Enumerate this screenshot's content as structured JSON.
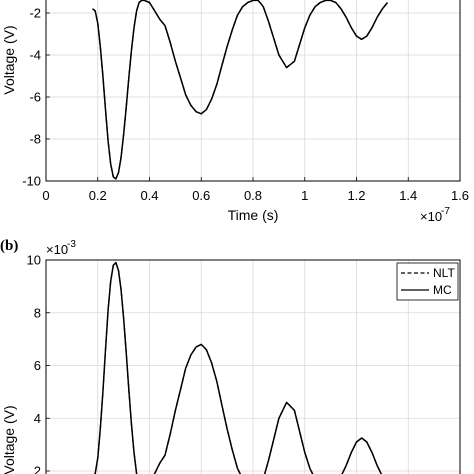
{
  "chart_data": [
    {
      "type": "line",
      "panel_label": "",
      "xlabel": "Time (s)",
      "ylabel": "Voltage (V)",
      "x_exponent_base": "×10",
      "x_exponent_power": "-7",
      "y_exponent_base": "",
      "y_exponent_power": "",
      "xlim": [
        0,
        1.6
      ],
      "ylim": [
        -10,
        -2
      ],
      "x_ticks": [
        "0",
        "0.2",
        "0.4",
        "0.6",
        "0.8",
        "1",
        "1.2",
        "1.4",
        "1.6"
      ],
      "y_ticks": [
        "-10",
        "-8",
        "-6",
        "-4",
        "-2"
      ],
      "grid": true,
      "legend": null,
      "series": [
        {
          "style": "solid",
          "x": [
            0.18,
            0.19,
            0.2,
            0.21,
            0.22,
            0.23,
            0.24,
            0.25,
            0.26,
            0.27,
            0.28,
            0.29,
            0.3,
            0.31,
            0.32,
            0.33,
            0.34,
            0.35,
            0.36,
            0.37,
            0.38,
            0.4,
            0.42,
            0.44,
            0.46,
            0.48,
            0.5,
            0.52,
            0.54,
            0.56,
            0.58,
            0.6,
            0.62,
            0.64,
            0.66,
            0.68,
            0.7,
            0.72,
            0.74,
            0.76,
            0.78,
            0.8,
            0.82,
            0.84,
            0.86,
            0.88,
            0.9,
            0.93,
            0.96,
            0.98,
            1.0,
            1.02,
            1.04,
            1.06,
            1.08,
            1.1,
            1.12,
            1.14,
            1.16,
            1.18,
            1.2,
            1.22,
            1.24,
            1.26,
            1.28,
            1.3,
            1.32
          ],
          "y": [
            -1.8,
            -1.9,
            -2.5,
            -3.6,
            -5.0,
            -6.6,
            -8.1,
            -9.2,
            -9.8,
            -9.9,
            -9.6,
            -8.9,
            -7.8,
            -6.5,
            -5.1,
            -3.8,
            -2.7,
            -1.9,
            -1.5,
            -1.4,
            -1.4,
            -1.5,
            -1.9,
            -2.3,
            -2.6,
            -3.4,
            -4.3,
            -5.1,
            -5.9,
            -6.4,
            -6.7,
            -6.8,
            -6.6,
            -6.1,
            -5.4,
            -4.5,
            -3.6,
            -2.8,
            -2.1,
            -1.7,
            -1.5,
            -1.4,
            -1.4,
            -1.7,
            -2.4,
            -3.2,
            -4.0,
            -4.6,
            -4.3,
            -3.5,
            -2.7,
            -2.1,
            -1.7,
            -1.5,
            -1.4,
            -1.4,
            -1.5,
            -1.8,
            -2.2,
            -2.7,
            -3.1,
            -3.25,
            -3.1,
            -2.7,
            -2.2,
            -1.8,
            -1.5
          ]
        },
        {
          "style": "dashed",
          "x": [
            0.18,
            0.19,
            0.2,
            0.21,
            0.22,
            0.23,
            0.24,
            0.25,
            0.26,
            0.27,
            0.28,
            0.29,
            0.3,
            0.31,
            0.32,
            0.33,
            0.34,
            0.35,
            0.36,
            0.37,
            0.38,
            0.4,
            0.42,
            0.44,
            0.46,
            0.48,
            0.5,
            0.52,
            0.54,
            0.56,
            0.58,
            0.6,
            0.62,
            0.64,
            0.66,
            0.68,
            0.7,
            0.72,
            0.74,
            0.76,
            0.78,
            0.8,
            0.82,
            0.84,
            0.86,
            0.88,
            0.9,
            0.93,
            0.96,
            0.98,
            1.0,
            1.02,
            1.04,
            1.06,
            1.08,
            1.1,
            1.12,
            1.14,
            1.16,
            1.18,
            1.2,
            1.22,
            1.24,
            1.26,
            1.28,
            1.3,
            1.32
          ],
          "y": [
            -1.8,
            -1.9,
            -2.5,
            -3.6,
            -5.0,
            -6.6,
            -8.1,
            -9.2,
            -9.8,
            -9.9,
            -9.6,
            -8.9,
            -7.8,
            -6.5,
            -5.1,
            -3.8,
            -2.7,
            -1.9,
            -1.5,
            -1.4,
            -1.4,
            -1.5,
            -1.9,
            -2.3,
            -2.6,
            -3.4,
            -4.3,
            -5.1,
            -5.9,
            -6.4,
            -6.7,
            -6.8,
            -6.6,
            -6.1,
            -5.4,
            -4.5,
            -3.6,
            -2.8,
            -2.1,
            -1.7,
            -1.5,
            -1.4,
            -1.4,
            -1.7,
            -2.4,
            -3.2,
            -4.0,
            -4.6,
            -4.3,
            -3.5,
            -2.7,
            -2.1,
            -1.7,
            -1.5,
            -1.4,
            -1.4,
            -1.5,
            -1.8,
            -2.2,
            -2.7,
            -3.1,
            -3.25,
            -3.1,
            -2.7,
            -2.2,
            -1.8,
            -1.5
          ]
        }
      ]
    },
    {
      "type": "line",
      "panel_label": "(b)",
      "xlabel": "",
      "ylabel": "Voltage (V)",
      "x_exponent_base": "",
      "x_exponent_power": "",
      "y_exponent_base": "×10",
      "y_exponent_power": "-3",
      "xlim": [
        0,
        1.6
      ],
      "ylim": [
        2,
        10
      ],
      "x_ticks": [],
      "y_ticks": [
        "2",
        "4",
        "6",
        "8",
        "10"
      ],
      "grid": true,
      "legend": {
        "placement": "top-right",
        "entries": [
          "NLT",
          "MC"
        ]
      },
      "series": [
        {
          "name": "NLT",
          "style": "dashed",
          "x": [
            0.18,
            0.19,
            0.2,
            0.21,
            0.22,
            0.23,
            0.24,
            0.25,
            0.26,
            0.27,
            0.28,
            0.29,
            0.3,
            0.31,
            0.32,
            0.33,
            0.34,
            0.35,
            0.36,
            0.37,
            0.38,
            0.4,
            0.42,
            0.44,
            0.46,
            0.48,
            0.5,
            0.52,
            0.54,
            0.56,
            0.58,
            0.6,
            0.62,
            0.64,
            0.66,
            0.68,
            0.7,
            0.72,
            0.74,
            0.76,
            0.78,
            0.8,
            0.82,
            0.84,
            0.86,
            0.88,
            0.9,
            0.93,
            0.96,
            0.98,
            1.0,
            1.02,
            1.04,
            1.06,
            1.08,
            1.1,
            1.12,
            1.14,
            1.16,
            1.18,
            1.2,
            1.22,
            1.24,
            1.26,
            1.28,
            1.3,
            1.32
          ],
          "y": [
            1.8,
            1.9,
            2.5,
            3.6,
            5.0,
            6.6,
            8.1,
            9.2,
            9.8,
            9.9,
            9.6,
            8.9,
            7.8,
            6.5,
            5.1,
            3.8,
            2.7,
            1.9,
            1.5,
            1.4,
            1.4,
            1.5,
            1.9,
            2.3,
            2.6,
            3.4,
            4.3,
            5.1,
            5.9,
            6.4,
            6.7,
            6.8,
            6.6,
            6.1,
            5.4,
            4.5,
            3.6,
            2.8,
            2.1,
            1.7,
            1.5,
            1.4,
            1.4,
            1.7,
            2.4,
            3.2,
            4.0,
            4.6,
            4.3,
            3.5,
            2.7,
            2.1,
            1.7,
            1.5,
            1.4,
            1.4,
            1.5,
            1.8,
            2.2,
            2.7,
            3.1,
            3.25,
            3.1,
            2.7,
            2.2,
            1.8,
            1.5
          ]
        },
        {
          "name": "MC",
          "style": "solid",
          "x": [
            0.18,
            0.19,
            0.2,
            0.21,
            0.22,
            0.23,
            0.24,
            0.25,
            0.26,
            0.27,
            0.28,
            0.29,
            0.3,
            0.31,
            0.32,
            0.33,
            0.34,
            0.35,
            0.36,
            0.37,
            0.38,
            0.4,
            0.42,
            0.44,
            0.46,
            0.48,
            0.5,
            0.52,
            0.54,
            0.56,
            0.58,
            0.6,
            0.62,
            0.64,
            0.66,
            0.68,
            0.7,
            0.72,
            0.74,
            0.76,
            0.78,
            0.8,
            0.82,
            0.84,
            0.86,
            0.88,
            0.9,
            0.93,
            0.96,
            0.98,
            1.0,
            1.02,
            1.04,
            1.06,
            1.08,
            1.1,
            1.12,
            1.14,
            1.16,
            1.18,
            1.2,
            1.22,
            1.24,
            1.26,
            1.28,
            1.3,
            1.32
          ],
          "y": [
            1.8,
            1.9,
            2.5,
            3.6,
            5.0,
            6.6,
            8.1,
            9.2,
            9.8,
            9.9,
            9.6,
            8.9,
            7.8,
            6.5,
            5.1,
            3.8,
            2.7,
            1.9,
            1.5,
            1.4,
            1.4,
            1.5,
            1.9,
            2.3,
            2.6,
            3.4,
            4.3,
            5.1,
            5.9,
            6.4,
            6.7,
            6.8,
            6.6,
            6.1,
            5.4,
            4.5,
            3.6,
            2.8,
            2.1,
            1.7,
            1.5,
            1.4,
            1.4,
            1.7,
            2.4,
            3.2,
            4.0,
            4.6,
            4.3,
            3.5,
            2.7,
            2.1,
            1.7,
            1.5,
            1.4,
            1.4,
            1.5,
            1.8,
            2.2,
            2.7,
            3.1,
            3.25,
            3.1,
            2.7,
            2.2,
            1.8,
            1.5
          ]
        }
      ]
    }
  ]
}
